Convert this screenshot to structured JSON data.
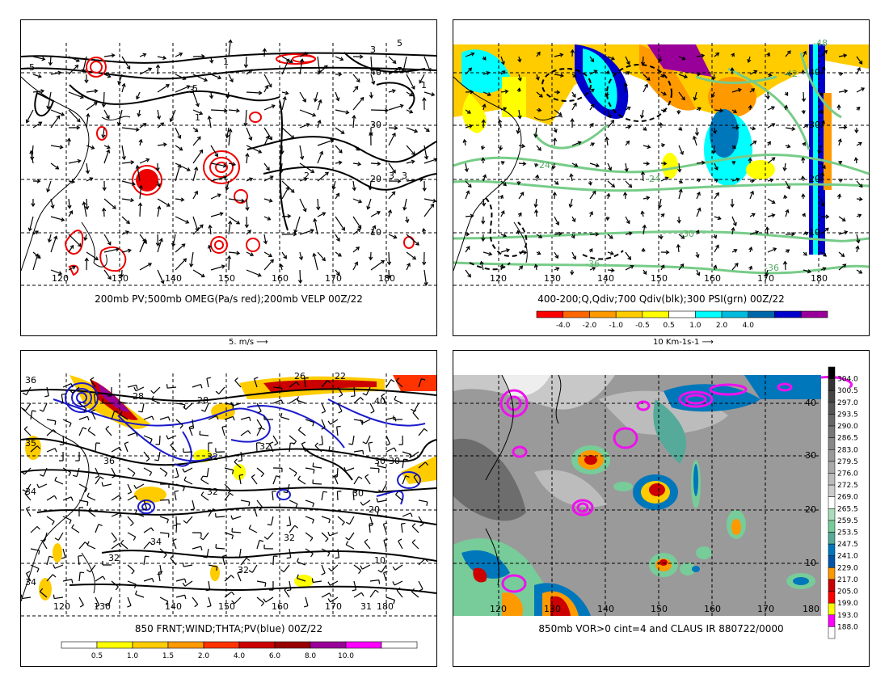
{
  "panels": [
    {
      "id": "p1",
      "caption": "200mb PV;500mb OMEG(Pa/s red);200mb VELP 00Z/22",
      "vector_scale_label": "5. m/s",
      "lon_labels": [
        "120",
        "130",
        "140",
        "150",
        "160",
        "170",
        "180"
      ],
      "lat_labels": [
        "40",
        "30",
        "20",
        "10"
      ],
      "contour_labels": [
        "5",
        "3",
        "1",
        "5",
        "3",
        "5",
        "1",
        "3",
        "2",
        "3",
        "1"
      ]
    },
    {
      "id": "p2",
      "caption": "400-200;Q,Qdiv;700 Qdiv(blk);300 PSI(grn) 00Z/22",
      "vector_scale_label": "10 Km-1s-1",
      "lon_labels": [
        "120",
        "130",
        "140",
        "150",
        "160",
        "170",
        "180"
      ],
      "lat_labels": [
        "40",
        "30",
        "20",
        "10"
      ],
      "contour_labels": [
        "-24",
        "-24",
        "-30",
        "-36",
        "-36",
        "-42",
        "-48"
      ],
      "colorbar": {
        "labels": [
          "-4.0",
          "-2.0",
          "-1.0",
          "-0.5",
          "0.5",
          "1.0",
          "2.0",
          "4.0"
        ],
        "colors": [
          "#ff0000",
          "#ff6600",
          "#ff9900",
          "#ffcc00",
          "#ffff00",
          "#ffffff",
          "#00ffff",
          "#00bbdd",
          "#0066aa",
          "#0000cc",
          "#990099"
        ]
      }
    },
    {
      "id": "p3",
      "caption": "850 FRNT;WIND;THTA;PV(blue) 00Z/22",
      "lon_labels": [
        "120",
        "130",
        "140",
        "150",
        "160",
        "170",
        "180"
      ],
      "lat_labels": [
        "40",
        "30",
        "20",
        "10"
      ],
      "contour_labels": [
        "36",
        "28",
        "28",
        "26",
        "22",
        "36",
        "35",
        "34",
        "32",
        "32",
        "30",
        "30",
        "32",
        "34",
        "32",
        "32",
        "31",
        "32",
        "34"
      ],
      "colorbar": {
        "labels": [
          "0.5",
          "1.0",
          "1.5",
          "2.0",
          "4.0",
          "6.0",
          "8.0",
          "10.0"
        ],
        "colors": [
          "#ffffff",
          "#ffff00",
          "#ffcc00",
          "#ff9900",
          "#ff3300",
          "#cc0000",
          "#990000",
          "#990099",
          "#ff00ff",
          "#ffffff"
        ]
      }
    },
    {
      "id": "p4",
      "caption": "850mb VOR>0 cint=4 and CLAUS IR 880722/0000",
      "lon_labels": [
        "120",
        "130",
        "140",
        "150",
        "160",
        "170",
        "180"
      ],
      "lat_labels": [
        "40",
        "30",
        "20",
        "10"
      ],
      "colorbar": {
        "labels": [
          "304.0",
          "300.5",
          "297.0",
          "293.5",
          "290.0",
          "286.5",
          "283.0",
          "279.5",
          "276.0",
          "272.5",
          "269.0",
          "265.5",
          "259.5",
          "253.5",
          "247.5",
          "241.0",
          "229.0",
          "217.0",
          "205.0",
          "199.0",
          "193.0",
          "188.0"
        ],
        "colors": [
          "#000000",
          "#333333",
          "#444444",
          "#555555",
          "#666666",
          "#777777",
          "#888888",
          "#999999",
          "#aaaaaa",
          "#bbbbbb",
          "#cccccc",
          "#ffffff",
          "#aaddbb",
          "#77cc99",
          "#55aa99",
          "#0077bb",
          "#0055aa",
          "#ff9900",
          "#cc0000",
          "#ff0000",
          "#ffff00",
          "#ff00ff",
          "#ffffff"
        ]
      }
    }
  ]
}
